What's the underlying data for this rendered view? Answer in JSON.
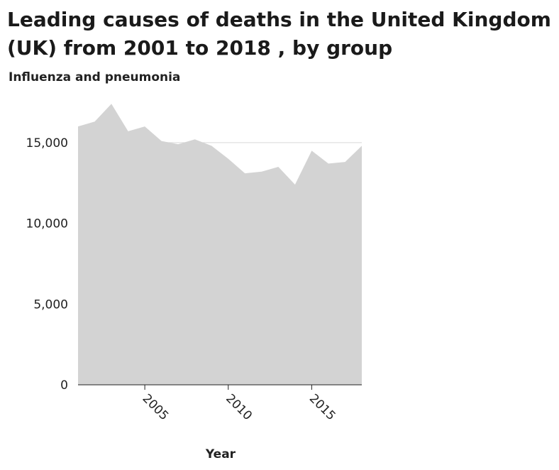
{
  "chart_data": {
    "type": "area",
    "title": "Leading causes of deaths in the United Kingdom (UK) from 2001 to 2018 , by group",
    "xlabel": "Year",
    "ylabel": "Influenza and pneumonia",
    "x": [
      2001,
      2002,
      2003,
      2004,
      2005,
      2006,
      2007,
      2008,
      2009,
      2010,
      2011,
      2012,
      2013,
      2014,
      2015,
      2016,
      2017,
      2018
    ],
    "series": [
      {
        "values": [
          16000,
          16300,
          17400,
          15700,
          16000,
          15100,
          14900,
          15200,
          14800,
          14000,
          13100,
          13200,
          13500,
          12400,
          14500,
          13700,
          13800,
          14800
        ]
      }
    ],
    "xlim": [
      2001,
      2018
    ],
    "ylim": [
      0,
      17500
    ],
    "xticks": [
      "2005",
      "2010",
      "2015"
    ],
    "yticks": [
      "0",
      "5,000",
      "10,000",
      "15,000"
    ],
    "fill_color": "#d3d3d3",
    "grid": "horizontal",
    "legend": "none"
  }
}
